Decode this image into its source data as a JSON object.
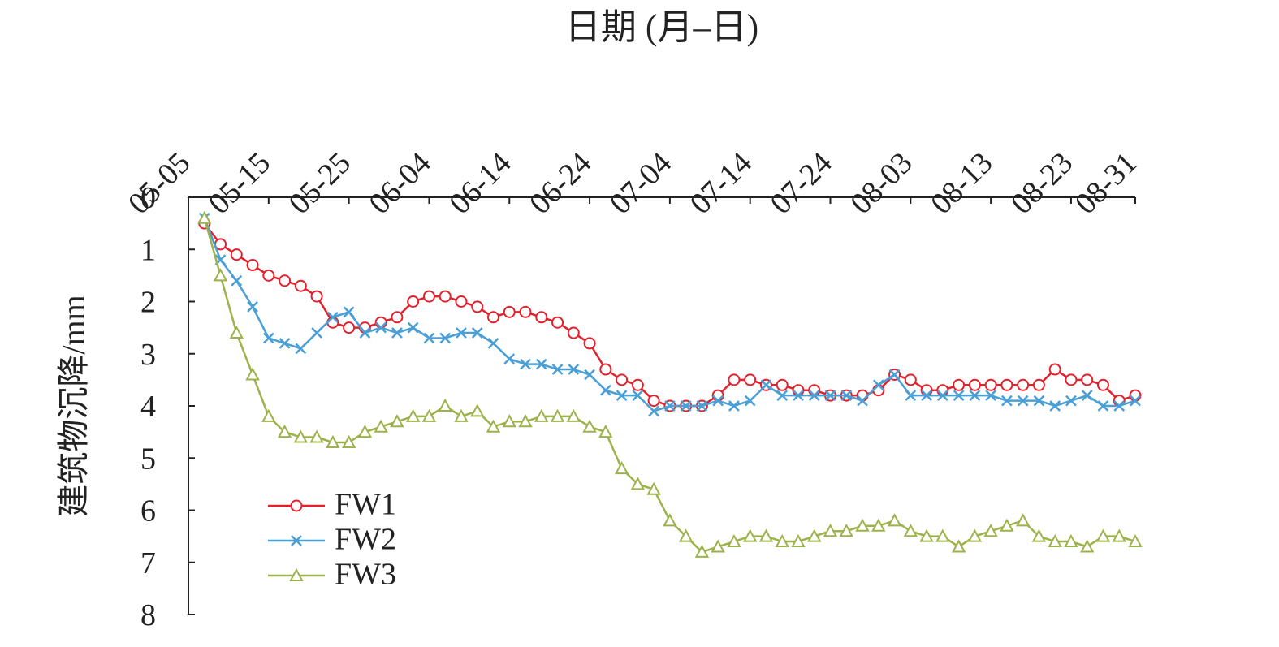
{
  "chart_data": {
    "type": "line",
    "title": "日期 (月–日)",
    "y_label": "建筑物沉降/mm",
    "x": [
      "05-07",
      "05-09",
      "05-11",
      "05-13",
      "05-15",
      "05-17",
      "05-19",
      "05-21",
      "05-23",
      "05-25",
      "05-27",
      "05-29",
      "05-31",
      "06-02",
      "06-04",
      "06-06",
      "06-08",
      "06-10",
      "06-12",
      "06-14",
      "06-16",
      "06-18",
      "06-20",
      "06-22",
      "06-24",
      "06-26",
      "06-28",
      "06-30",
      "07-02",
      "07-04",
      "07-06",
      "07-08",
      "07-10",
      "07-12",
      "07-14",
      "07-16",
      "07-18",
      "07-20",
      "07-22",
      "07-24",
      "07-26",
      "07-28",
      "07-30",
      "08-01",
      "08-03",
      "08-05",
      "08-07",
      "08-09",
      "08-11",
      "08-13",
      "08-15",
      "08-17",
      "08-19",
      "08-21",
      "08-23",
      "08-25",
      "08-27",
      "08-29",
      "08-31"
    ],
    "xlim": [
      "05-05",
      "08-31"
    ],
    "xticks": [
      "05-05",
      "05-15",
      "05-25",
      "06-04",
      "06-14",
      "06-24",
      "07-04",
      "07-14",
      "07-24",
      "08-03",
      "08-13",
      "08-23",
      "08-31"
    ],
    "ylim": [
      0,
      8
    ],
    "y_inverted": true,
    "yticks": [
      0,
      1,
      2,
      3,
      4,
      5,
      6,
      7,
      8
    ],
    "legend": "lower-left",
    "series": [
      {
        "name": "FW1",
        "color": "#e3202b",
        "marker": "circle",
        "values": [
          0.5,
          0.9,
          1.1,
          1.3,
          1.5,
          1.6,
          1.7,
          1.9,
          2.4,
          2.5,
          2.5,
          2.4,
          2.3,
          2.0,
          1.9,
          1.9,
          2.0,
          2.1,
          2.3,
          2.2,
          2.2,
          2.3,
          2.4,
          2.6,
          2.8,
          3.3,
          3.5,
          3.6,
          3.9,
          4.0,
          4.0,
          4.0,
          3.8,
          3.5,
          3.5,
          3.6,
          3.6,
          3.7,
          3.7,
          3.8,
          3.8,
          3.8,
          3.7,
          3.4,
          3.5,
          3.7,
          3.7,
          3.6,
          3.6,
          3.6,
          3.6,
          3.6,
          3.6,
          3.3,
          3.5,
          3.5,
          3.6,
          3.9,
          3.8
        ]
      },
      {
        "name": "FW2",
        "color": "#4a9fd6",
        "marker": "x",
        "values": [
          0.4,
          1.2,
          1.6,
          2.1,
          2.7,
          2.8,
          2.9,
          2.6,
          2.3,
          2.2,
          2.6,
          2.5,
          2.6,
          2.5,
          2.7,
          2.7,
          2.6,
          2.6,
          2.8,
          3.1,
          3.2,
          3.2,
          3.3,
          3.3,
          3.4,
          3.7,
          3.8,
          3.8,
          4.1,
          4.0,
          4.0,
          4.0,
          3.9,
          4.0,
          3.9,
          3.6,
          3.8,
          3.8,
          3.8,
          3.8,
          3.8,
          3.9,
          3.6,
          3.4,
          3.8,
          3.8,
          3.8,
          3.8,
          3.8,
          3.8,
          3.9,
          3.9,
          3.9,
          4.0,
          3.9,
          3.8,
          4.0,
          4.0,
          3.9
        ]
      },
      {
        "name": "FW3",
        "color": "#9cb24a",
        "marker": "triangle",
        "values": [
          0.4,
          1.5,
          2.6,
          3.4,
          4.2,
          4.5,
          4.6,
          4.6,
          4.7,
          4.7,
          4.5,
          4.4,
          4.3,
          4.2,
          4.2,
          4.0,
          4.2,
          4.1,
          4.4,
          4.3,
          4.3,
          4.2,
          4.2,
          4.2,
          4.4,
          4.5,
          5.2,
          5.5,
          5.6,
          6.2,
          6.5,
          6.8,
          6.7,
          6.6,
          6.5,
          6.5,
          6.6,
          6.6,
          6.5,
          6.4,
          6.4,
          6.3,
          6.3,
          6.2,
          6.4,
          6.5,
          6.5,
          6.7,
          6.5,
          6.4,
          6.3,
          6.2,
          6.5,
          6.6,
          6.6,
          6.7,
          6.5,
          6.5,
          6.6
        ]
      }
    ]
  }
}
